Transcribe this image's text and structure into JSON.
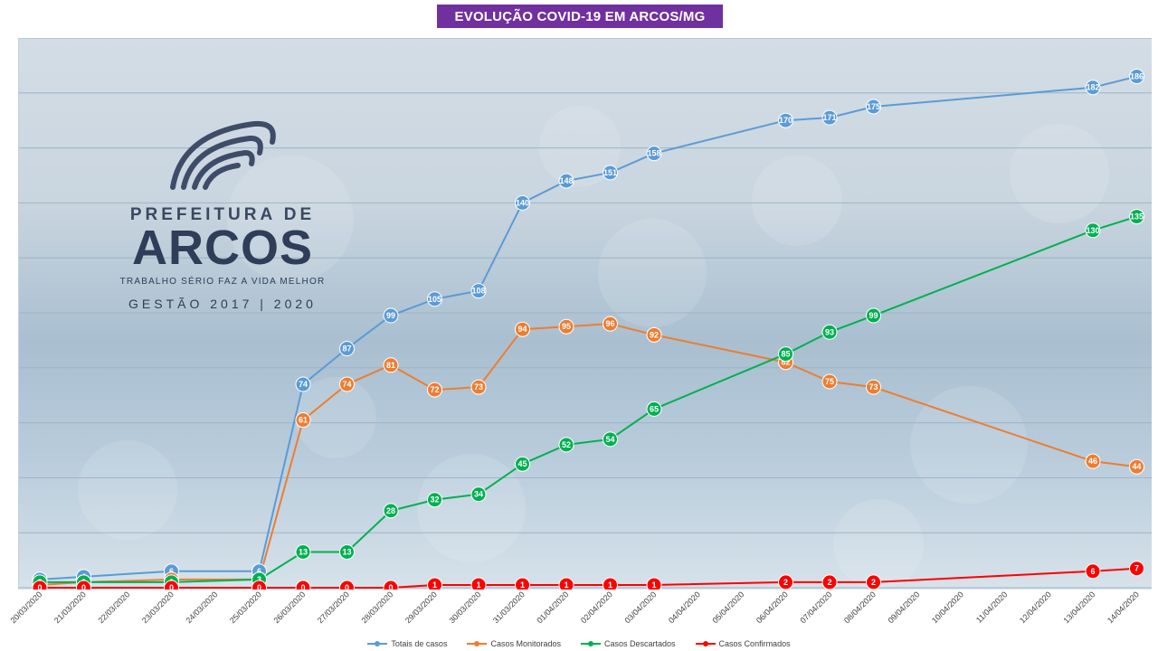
{
  "title": "EVOLUÇÃO COVID-19 EM ARCOS/MG",
  "logo": {
    "prefix": "PREFEITURA DE",
    "name": "ARCOS",
    "slogan": "TRABALHO SÉRIO FAZ A VIDA MELHOR",
    "gestao": "GESTÃO 2017 | 2020"
  },
  "chart_data": {
    "type": "line",
    "categories": [
      "20/03/2020",
      "21/03/2020",
      "22/03/2020",
      "23/03/2020",
      "24/03/2020",
      "25/03/2020",
      "26/03/2020",
      "27/03/2020",
      "28/03/2020",
      "29/03/2020",
      "30/03/2020",
      "31/03/2020",
      "01/04/2020",
      "02/04/2020",
      "03/04/2020",
      "04/04/2020",
      "05/04/2020",
      "06/04/2020",
      "07/04/2020",
      "08/04/2020",
      "09/04/2020",
      "10/04/2020",
      "11/04/2020",
      "12/04/2020",
      "13/04/2020",
      "14/04/2020"
    ],
    "ylim": [
      0,
      200
    ],
    "grid": true,
    "legend_position": "bottom",
    "series": [
      {
        "name": "Totais de casos",
        "color": "#5b9bd5",
        "values": [
          3,
          4,
          null,
          6,
          null,
          6,
          74,
          87,
          99,
          105,
          108,
          140,
          148,
          151,
          158,
          null,
          null,
          170,
          171,
          175,
          null,
          null,
          null,
          null,
          182,
          186
        ]
      },
      {
        "name": "Casos Monitorados",
        "color": "#ed7d31",
        "values": [
          1,
          2,
          null,
          3,
          null,
          3,
          61,
          74,
          81,
          72,
          73,
          94,
          95,
          96,
          92,
          null,
          null,
          82,
          75,
          73,
          null,
          null,
          null,
          null,
          46,
          44
        ]
      },
      {
        "name": "Casos Descartados",
        "color": "#00b050",
        "values": [
          2,
          2,
          null,
          2,
          null,
          3,
          13,
          13,
          28,
          32,
          34,
          45,
          52,
          54,
          65,
          null,
          null,
          85,
          93,
          99,
          null,
          null,
          null,
          null,
          130,
          135
        ]
      },
      {
        "name": "Casos Confirmados",
        "color": "#ff0000",
        "values": [
          0,
          0,
          null,
          0,
          null,
          0,
          0,
          0,
          0,
          1,
          1,
          1,
          1,
          1,
          1,
          null,
          null,
          2,
          2,
          2,
          null,
          null,
          null,
          null,
          6,
          7
        ]
      }
    ]
  }
}
